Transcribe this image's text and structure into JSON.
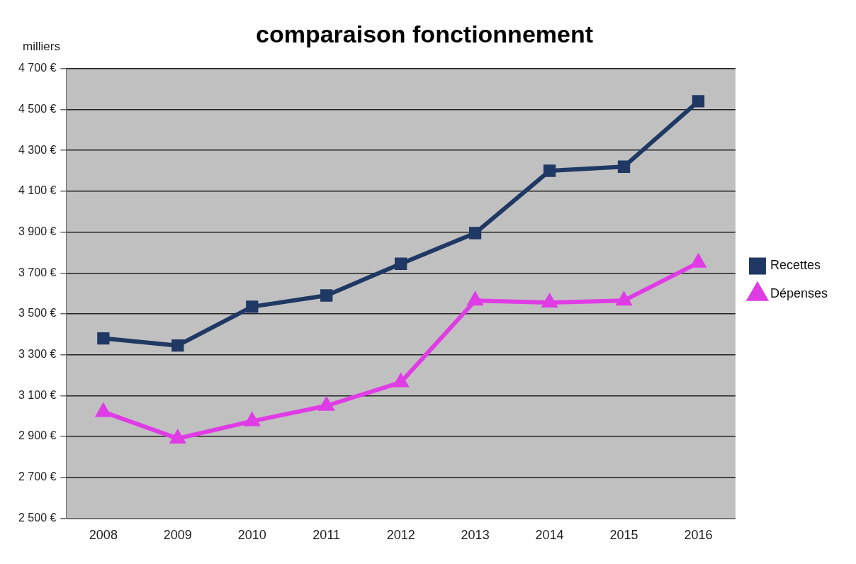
{
  "chart_data": {
    "type": "line",
    "title": "comparaison fonctionnement",
    "ylabel": "milliers",
    "categories": [
      "2008",
      "2009",
      "2010",
      "2011",
      "2012",
      "2013",
      "2014",
      "2015",
      "2016"
    ],
    "series": [
      {
        "name": "Recettes",
        "color": "#1f3864",
        "marker": "square",
        "values": [
          3380,
          3345,
          3535,
          3590,
          3745,
          3895,
          4200,
          4220,
          4540
        ]
      },
      {
        "name": "Dépenses",
        "color": "#e03ce6",
        "marker": "triangle",
        "values": [
          3020,
          2890,
          2975,
          3050,
          3165,
          3565,
          3555,
          3565,
          3750
        ]
      }
    ],
    "ylim": [
      2500,
      4700
    ],
    "yticks": [
      {
        "value": 2500,
        "label": "2 500 €"
      },
      {
        "value": 2700,
        "label": "2 700 €"
      },
      {
        "value": 2900,
        "label": "2 900 €"
      },
      {
        "value": 3100,
        "label": "3 100 €"
      },
      {
        "value": 3300,
        "label": "3 300 €"
      },
      {
        "value": 3500,
        "label": "3 500 €"
      },
      {
        "value": 3700,
        "label": "3 700 €"
      },
      {
        "value": 3900,
        "label": "3 900 €"
      },
      {
        "value": 4100,
        "label": "4 100 €"
      },
      {
        "value": 4300,
        "label": "4 300 €"
      },
      {
        "value": 4500,
        "label": "4 500 €"
      },
      {
        "value": 4700,
        "label": "4 700 €"
      }
    ],
    "grid": "y",
    "legend": "right"
  }
}
